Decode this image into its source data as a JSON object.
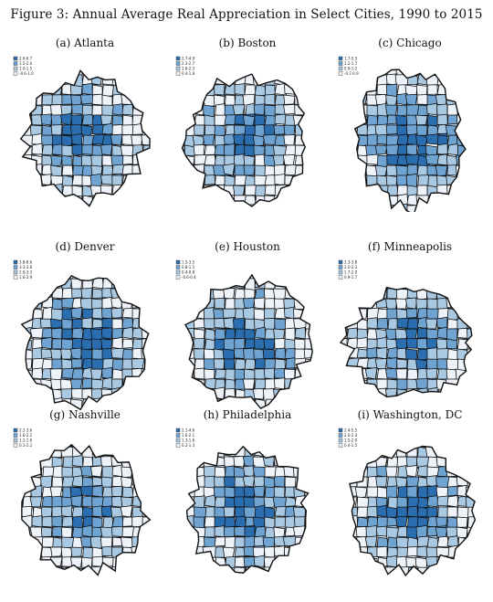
{
  "title": "Figure 3: Annual Average Real Appreciation in Select Cities, 1990 to 2015",
  "colors": {
    "q4": "#2a6eb0",
    "q3": "#6fa3d1",
    "q2": "#a9c8e2",
    "q1": "#eef3f9",
    "border": "#111111"
  },
  "panels": [
    {
      "caption": "(a) Atlanta",
      "legend": [
        "2.0-6.7",
        "1.5-2.0",
        "1.0-1.5",
        "-0.6-1.0"
      ],
      "dark": 0.48
    },
    {
      "caption": "(b) Boston",
      "legend": [
        "2.7-4.9",
        "2.3-2.7",
        "1.8-2.3",
        "0.4-1.8"
      ],
      "dark": 0.42
    },
    {
      "caption": "(c) Chicago",
      "legend": [
        "1.7-5.5",
        "1.2-1.7",
        "0.9-1.2",
        "-0.7-0.9"
      ],
      "dark": 0.55
    },
    {
      "caption": "(d) Denver",
      "legend": [
        "3.8-6.6",
        "3.3-3.8",
        "2.9-3.3",
        "1.6-2.9"
      ],
      "dark": 0.5
    },
    {
      "caption": "(e) Houston",
      "legend": [
        "1.5-3.5",
        "0.8-1.5",
        "0.4-0.8",
        "-0.6-0.4"
      ],
      "dark": 0.45
    },
    {
      "caption": "(f) Minneapolis",
      "legend": [
        "2.3-3.8",
        "2.0-2.3",
        "1.7-2.0",
        "0.9-1.7"
      ],
      "dark": 0.47
    },
    {
      "caption": "(g) Nashville",
      "legend": [
        "2.2-3.6",
        "1.6-2.2",
        "1.2-1.6",
        "0.1-1.2"
      ],
      "dark": 0.4
    },
    {
      "caption": "(h) Philadelphia",
      "legend": [
        "2.1-4.6",
        "1.6-2.1",
        "1.3-1.6",
        "0.2-1.3"
      ],
      "dark": 0.5
    },
    {
      "caption": "(i) Washington, DC",
      "legend": [
        "2.4-5.5",
        "2.0-2.4",
        "1.5-2.0",
        "0.4-1.5"
      ],
      "dark": 0.48
    }
  ]
}
